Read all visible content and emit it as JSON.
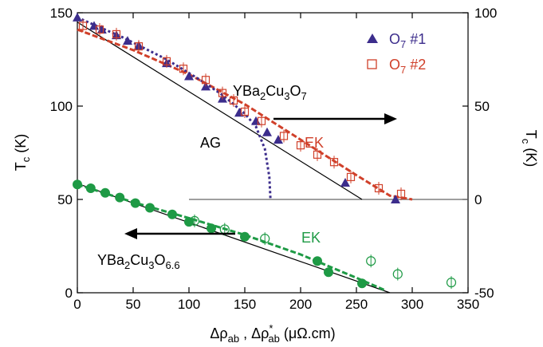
{
  "chart_data": {
    "type": "scatter",
    "title": "",
    "xlabel": {
      "base": "Δρ",
      "sub1": "ab",
      "sep": " , Δρ",
      "sup": "*",
      "sub2": "ab",
      "unit": " (μΩ.cm)"
    },
    "ylabel_left": {
      "base": "T",
      "sub": "c",
      "unit": " (K)"
    },
    "ylabel_right": {
      "base": "T",
      "sub": "c",
      "unit": " (K)"
    },
    "xlim": [
      0,
      350
    ],
    "ylim_left": [
      0,
      150
    ],
    "ylim_right": [
      -50,
      100
    ],
    "x_ticks": [
      "0",
      "50",
      "100",
      "150",
      "200",
      "250",
      "300",
      "350"
    ],
    "y_left_ticks": [
      "0",
      "50",
      "100",
      "150"
    ],
    "y_right_ticks": [
      "-50",
      "0",
      "50",
      "100"
    ],
    "grid": false,
    "legend_position": "top-right",
    "legend": [
      {
        "label_base": "O",
        "label_sub": "7",
        "label_rest": " #1",
        "marker": "triangle",
        "color": "#3c2d8c"
      },
      {
        "label_base": "O",
        "label_sub": "7",
        "label_rest": " #2",
        "marker": "open-square",
        "color": "#d0402a"
      }
    ],
    "annotations": {
      "compound_o7": {
        "parts": [
          "YBa",
          "2",
          "Cu",
          "3",
          "O",
          "7"
        ]
      },
      "compound_o66": {
        "parts": [
          "YBa",
          "2",
          "Cu",
          "3",
          "O",
          "6.6"
        ]
      },
      "ag": "AG",
      "ek_top": "EK",
      "ek_bottom": "EK"
    },
    "colors": {
      "purple": "#3c2d8c",
      "red": "#d0402a",
      "green": "#1e9a45",
      "black": "#000000"
    },
    "series": [
      {
        "name": "O7 #1",
        "axis": "right",
        "marker": "triangle",
        "points": [
          [
            0,
            97.5
          ],
          [
            15,
            93
          ],
          [
            22,
            91
          ],
          [
            35,
            88
          ],
          [
            45,
            85
          ],
          [
            55,
            82.5
          ],
          [
            80,
            73
          ],
          [
            100,
            66
          ],
          [
            115,
            60.5
          ],
          [
            130,
            54
          ],
          [
            145,
            46.5
          ],
          [
            160,
            42
          ],
          [
            170,
            36
          ],
          [
            180,
            32
          ],
          [
            240,
            9
          ],
          [
            285,
            0
          ]
        ]
      },
      {
        "name": "O7 #2",
        "axis": "right",
        "marker": "open-square",
        "points": [
          [
            5,
            93
          ],
          [
            20,
            91
          ],
          [
            35,
            88.5
          ],
          [
            55,
            82
          ],
          [
            80,
            74
          ],
          [
            95,
            70
          ],
          [
            115,
            64
          ],
          [
            130,
            57
          ],
          [
            140,
            53
          ],
          [
            150,
            47
          ],
          [
            165,
            42
          ],
          [
            185,
            34
          ],
          [
            200,
            29
          ],
          [
            215,
            24
          ],
          [
            230,
            20
          ],
          [
            245,
            12
          ],
          [
            270,
            6
          ],
          [
            290,
            3
          ]
        ]
      },
      {
        "name": "O6.6 filled",
        "axis": "left",
        "marker": "filled-circle",
        "points": [
          [
            0,
            58
          ],
          [
            12,
            56
          ],
          [
            25,
            53.5
          ],
          [
            38,
            51
          ],
          [
            52,
            48
          ],
          [
            65,
            45.5
          ],
          [
            85,
            42
          ],
          [
            100,
            38
          ],
          [
            120,
            34.5
          ],
          [
            150,
            30
          ],
          [
            215,
            17
          ],
          [
            225,
            11
          ],
          [
            255,
            5
          ]
        ]
      },
      {
        "name": "O6.6 open",
        "axis": "left",
        "marker": "open-circle",
        "points": [
          [
            105,
            38.5
          ],
          [
            132,
            34
          ],
          [
            168,
            29
          ],
          [
            263,
            17
          ],
          [
            287,
            10
          ],
          [
            335,
            5.5
          ]
        ]
      }
    ],
    "fits": [
      {
        "name": "O7 linear fit",
        "axis": "right",
        "style": "solid",
        "color": "#000000",
        "points": [
          [
            0,
            95
          ],
          [
            255,
            0
          ]
        ]
      },
      {
        "name": "O7 EK fit",
        "axis": "right",
        "style": "dashed",
        "color": "#d0402a",
        "points": [
          [
            0,
            91
          ],
          [
            50,
            80
          ],
          [
            100,
            67
          ],
          [
            150,
            51
          ],
          [
            200,
            32
          ],
          [
            250,
            13
          ],
          [
            280,
            2
          ],
          [
            300,
            0
          ]
        ]
      },
      {
        "name": "O7 AG fit",
        "axis": "right",
        "style": "dotted",
        "color": "#3c2d8c",
        "points": [
          [
            0,
            97.5
          ],
          [
            40,
            87
          ],
          [
            80,
            75
          ],
          [
            110,
            64
          ],
          [
            130,
            56
          ],
          [
            150,
            46
          ],
          [
            160,
            39
          ],
          [
            168,
            27
          ],
          [
            172,
            12
          ],
          [
            173,
            0
          ]
        ]
      },
      {
        "name": "O6.6 linear fit",
        "axis": "left",
        "style": "solid",
        "color": "#000000",
        "points": [
          [
            0,
            58.5
          ],
          [
            280,
            0
          ]
        ]
      },
      {
        "name": "O6.6 EK fit",
        "axis": "left",
        "style": "dashed",
        "color": "#1e9a45",
        "points": [
          [
            0,
            58
          ],
          [
            50,
            48.5
          ],
          [
            100,
            40
          ],
          [
            150,
            31
          ],
          [
            200,
            20.5
          ],
          [
            250,
            8
          ],
          [
            275,
            1.5
          ]
        ]
      }
    ],
    "zero_line_right": 0
  }
}
